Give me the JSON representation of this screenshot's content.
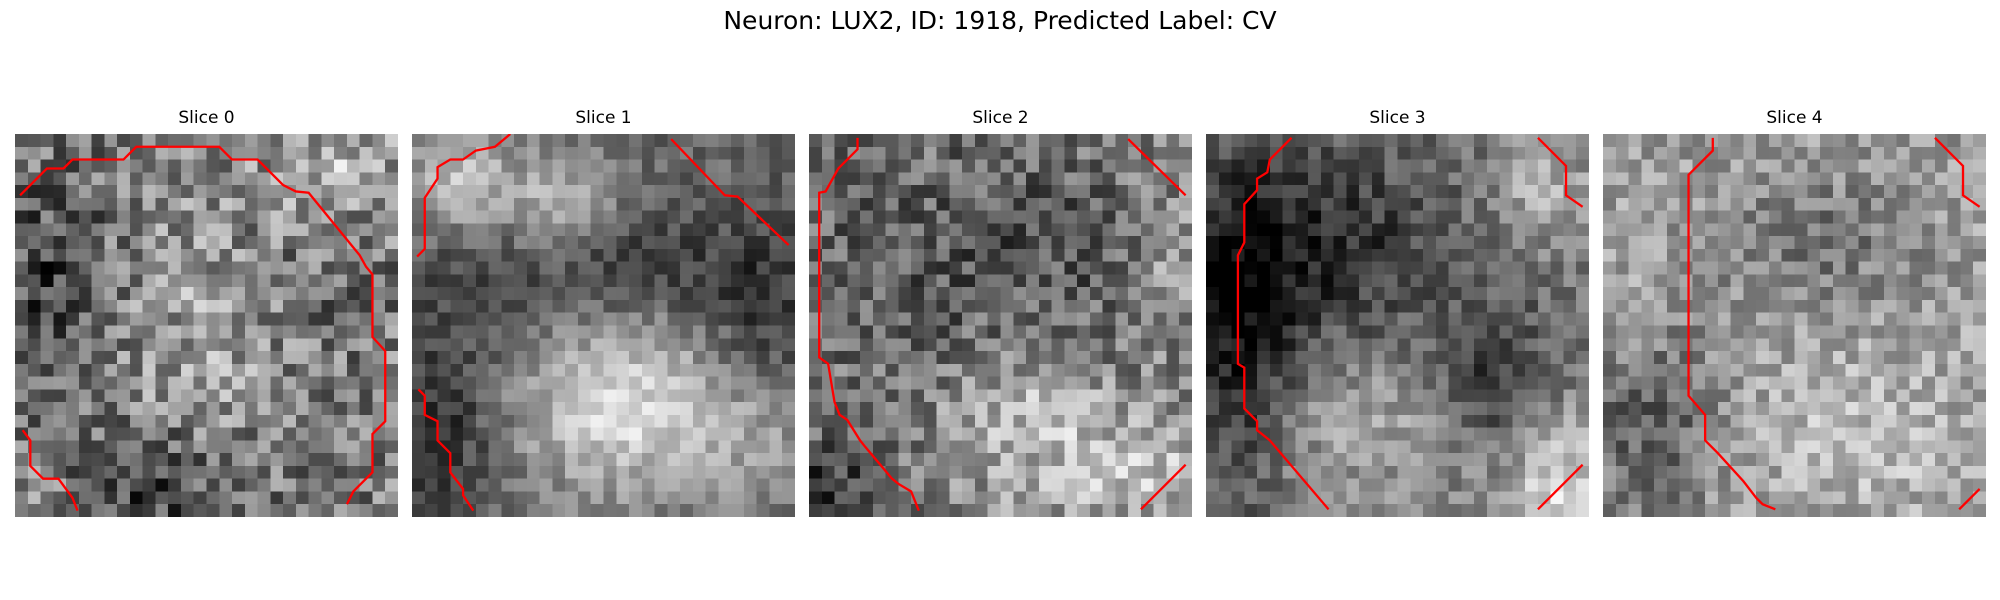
{
  "figure": {
    "title": "Neuron: LUX2, ID: 1918, Predicted Label: CV",
    "contour_color": "#ff0000",
    "colormap": "gray"
  },
  "panels": [
    {
      "title": "Slice 0"
    },
    {
      "title": "Slice 1"
    },
    {
      "title": "Slice 2"
    },
    {
      "title": "Slice 3"
    },
    {
      "title": "Slice 4"
    }
  ]
}
